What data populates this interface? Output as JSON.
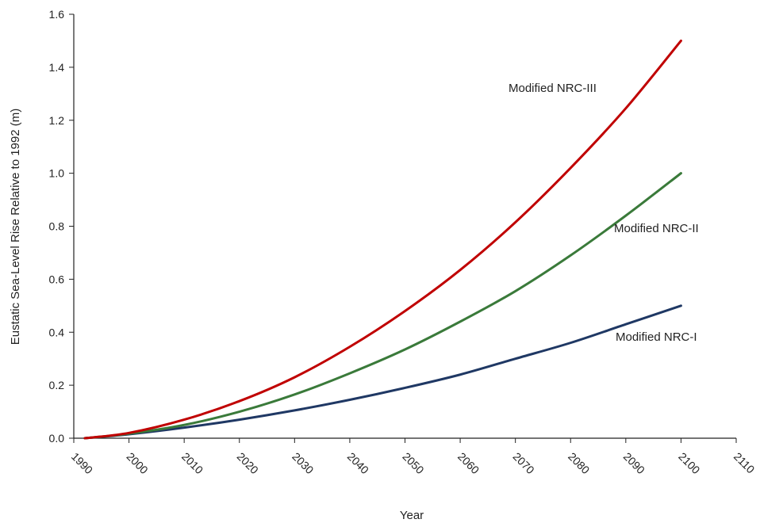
{
  "chart_data": {
    "type": "line",
    "title": "",
    "xlabel": "Year",
    "ylabel": "Eustatic Sea-Level Rise Relative to 1992 (m)",
    "xlim": [
      1990,
      2110
    ],
    "ylim": [
      0,
      1.6
    ],
    "x_ticks": [
      "1990",
      "2000",
      "2010",
      "2020",
      "2030",
      "2040",
      "2050",
      "2060",
      "2070",
      "2080",
      "2090",
      "2100",
      "2110"
    ],
    "y_ticks": [
      "0.0",
      "0.2",
      "0.4",
      "0.6",
      "0.8",
      "1.0",
      "1.2",
      "1.4",
      "1.6"
    ],
    "grid": false,
    "legend": "none",
    "x": [
      1992,
      2000,
      2010,
      2020,
      2030,
      2040,
      2050,
      2060,
      2070,
      2080,
      2090,
      2100
    ],
    "series": [
      {
        "name": "Modified NRC-I",
        "color": "#1f3864",
        "values": [
          0.0,
          0.015,
          0.04,
          0.07,
          0.105,
          0.145,
          0.19,
          0.24,
          0.3,
          0.36,
          0.43,
          0.5
        ]
      },
      {
        "name": "Modified NRC-II",
        "color": "#3a7a3a",
        "values": [
          0.0,
          0.017,
          0.05,
          0.1,
          0.165,
          0.245,
          0.335,
          0.44,
          0.555,
          0.69,
          0.84,
          1.0
        ]
      },
      {
        "name": "Modified NRC-III",
        "color": "#c00000",
        "values": [
          0.0,
          0.02,
          0.07,
          0.14,
          0.23,
          0.345,
          0.48,
          0.635,
          0.815,
          1.02,
          1.245,
          1.5
        ]
      }
    ]
  }
}
